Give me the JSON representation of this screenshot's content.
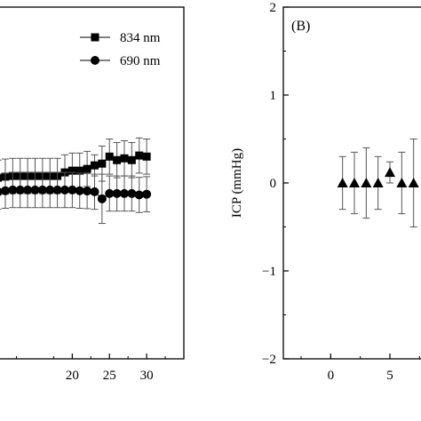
{
  "chart_data": [
    {
      "type": "scatter",
      "panel_label": "",
      "xlabel": "",
      "ylabel": "",
      "xlim": [
        10,
        35
      ],
      "xticks": [
        20,
        25,
        30
      ],
      "ylim": [
        0,
        1
      ],
      "legend_position": "top-right",
      "series": [
        {
          "name": "834 nm",
          "marker": "square",
          "x": [
            10,
            11,
            12,
            13,
            14,
            15,
            16,
            17,
            18,
            19,
            20,
            21,
            22,
            23,
            24,
            25,
            26,
            27,
            28,
            29,
            30
          ],
          "y": [
            0.515,
            0.518,
            0.52,
            0.52,
            0.52,
            0.52,
            0.52,
            0.52,
            0.52,
            0.53,
            0.535,
            0.535,
            0.54,
            0.55,
            0.555,
            0.575,
            0.565,
            0.57,
            0.565,
            0.578,
            0.575
          ],
          "err": [
            0.05,
            0.05,
            0.05,
            0.05,
            0.05,
            0.05,
            0.05,
            0.05,
            0.05,
            0.05,
            0.05,
            0.05,
            0.05,
            0.03,
            0.05,
            0.05,
            0.05,
            0.05,
            0.05,
            0.05,
            0.05
          ]
        },
        {
          "name": "690 nm",
          "marker": "circle",
          "x": [
            10,
            11,
            12,
            13,
            14,
            15,
            16,
            17,
            18,
            19,
            20,
            21,
            22,
            23,
            24,
            25,
            26,
            27,
            28,
            29,
            30
          ],
          "y": [
            0.475,
            0.478,
            0.48,
            0.48,
            0.48,
            0.48,
            0.48,
            0.48,
            0.48,
            0.48,
            0.48,
            0.478,
            0.477,
            0.475,
            0.455,
            0.47,
            0.47,
            0.47,
            0.47,
            0.466,
            0.468
          ],
          "err": [
            0.05,
            0.05,
            0.05,
            0.05,
            0.05,
            0.05,
            0.05,
            0.05,
            0.05,
            0.05,
            0.05,
            0.05,
            0.05,
            0.05,
            0.07,
            0.05,
            0.05,
            0.05,
            0.05,
            0.05,
            0.05
          ]
        }
      ]
    },
    {
      "type": "scatter",
      "panel_label": "(B)",
      "xlabel": "",
      "ylabel": "ICP (mmHg)",
      "xlim": [
        -4,
        8
      ],
      "xticks": [
        0,
        5
      ],
      "ylim": [
        -2,
        2
      ],
      "yticks": [
        -2,
        -1,
        0,
        1,
        2
      ],
      "series": [
        {
          "name": "",
          "marker": "triangle",
          "x": [
            1,
            2,
            3,
            4,
            5,
            6,
            7
          ],
          "y": [
            0,
            0,
            0,
            0,
            0.12,
            0,
            0
          ],
          "err": [
            0.3,
            0.35,
            0.4,
            0.3,
            0.12,
            0.35,
            0.5
          ]
        }
      ]
    }
  ]
}
